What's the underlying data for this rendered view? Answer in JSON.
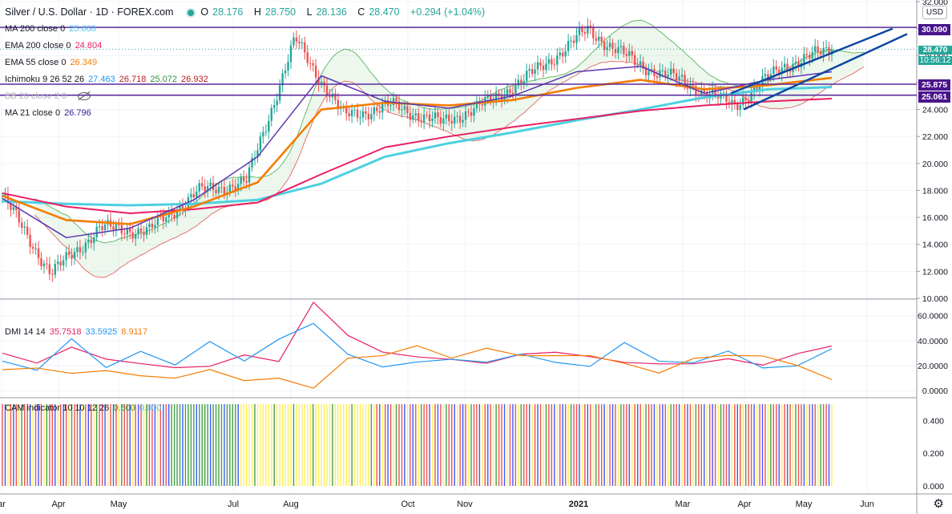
{
  "header": {
    "symbol": "Silver / U.S. Dollar · 1D · FOREX.com",
    "ohlc": {
      "o_label": "O",
      "o": "28.176",
      "h_label": "H",
      "h": "28.750",
      "l_label": "L",
      "l": "28.136",
      "c_label": "C",
      "c": "28.470",
      "change": "+0.294 (+1.04%)"
    },
    "currency": "USD"
  },
  "legend": [
    {
      "label": "MA 200 close 0",
      "value": "25.660",
      "color": "#4fc3f7"
    },
    {
      "label": "EMA 200 close 0",
      "value": "24.804",
      "color": "#e91e63"
    },
    {
      "label": "EMA 55 close 0",
      "value": "26.349",
      "color": "#f57c00"
    },
    {
      "label": "Ichimoku 9 26 52 26",
      "values": [
        "27.463",
        "26.718",
        "25.072",
        "26.932"
      ],
      "colors": [
        "#2196f3",
        "#b71c1c",
        "#388e3c",
        "#b71c1c"
      ]
    },
    {
      "label": "BB 20 close 2 0",
      "value": "",
      "color": "#90a4ae"
    },
    {
      "label": "MA 21 close 0",
      "value": "26.796",
      "color": "#311b92"
    }
  ],
  "dmi_legend": {
    "label": "DMI 14 14",
    "values": [
      "35.7518",
      "33.5925",
      "8.9117"
    ],
    "colors": [
      "#e91e63",
      "#2196f3",
      "#f57c00"
    ]
  },
  "cam_legend": {
    "label": "CAM indicator 10 10 12 26",
    "values": [
      "0.500",
      "0.000"
    ],
    "colors": [
      "#388e3c",
      "#4fc3f7"
    ]
  },
  "price_tags": {
    "resistance_top": "30.090",
    "last_price": "28.470",
    "countdown": "10:56:12",
    "level_mid": "25.875",
    "level_low": "25.061"
  },
  "colors": {
    "up": "#26a69a",
    "down": "#ef5350",
    "horizontal_line": "#5b2c9e",
    "channel": "#0d47a1",
    "last_price": "#26a69a",
    "cam_colors": [
      "#ef5350",
      "#3d5afe",
      "#ffee58",
      "#43a047"
    ]
  },
  "chart_data": [
    {
      "type": "candlestick",
      "title": "Silver / U.S. Dollar · 1D · FOREX.com",
      "x_ticks": [
        "ar",
        "Apr",
        "May",
        "Jul",
        "Aug",
        "Oct",
        "Nov",
        "2021",
        "Mar",
        "Apr",
        "May",
        "Jun"
      ],
      "y_ticks": [
        "32.000",
        "30.000",
        "28.000",
        "26.000",
        "24.000",
        "22.000",
        "20.000",
        "18.000",
        "16.000",
        "14.000",
        "12.000",
        "10.000"
      ],
      "ylim": [
        10,
        32
      ],
      "horizontal_levels": [
        30.09,
        25.875,
        25.061
      ],
      "last_price": 28.47,
      "key_points": [
        {
          "x": "Mar",
          "y": 17.6
        },
        {
          "x": "Mar",
          "y": 11.8
        },
        {
          "x": "Apr",
          "y": 15.2
        },
        {
          "x": "May",
          "y": 15.0
        },
        {
          "x": "Jun",
          "y": 17.9
        },
        {
          "x": "Jul",
          "y": 18.6
        },
        {
          "x": "Aug",
          "y": 29.2
        },
        {
          "x": "Sep",
          "y": 23.5
        },
        {
          "x": "Oct",
          "y": 24.3
        },
        {
          "x": "Nov",
          "y": 23.0
        },
        {
          "x": "Dec",
          "y": 24.6
        },
        {
          "x": "Jan",
          "y": 27.0
        },
        {
          "x": "Feb",
          "y": 29.9
        },
        {
          "x": "Feb",
          "y": 27.4
        },
        {
          "x": "Mar",
          "y": 26.0
        },
        {
          "x": "Apr",
          "y": 24.3
        },
        {
          "x": "May",
          "y": 27.2
        },
        {
          "x": "May",
          "y": 28.47
        }
      ],
      "series": [
        {
          "name": "MA 200",
          "values": [
            17.2,
            17.0,
            16.9,
            17.0,
            17.3,
            18.5,
            20.5,
            21.5,
            22.3,
            23.2,
            24.0,
            24.9,
            25.5,
            25.66
          ]
        },
        {
          "name": "EMA 200",
          "values": [
            17.8,
            16.8,
            16.3,
            16.6,
            17.1,
            19.2,
            21.2,
            22.0,
            22.7,
            23.3,
            23.9,
            24.3,
            24.6,
            24.804
          ]
        },
        {
          "name": "EMA 55",
          "values": [
            17.6,
            15.8,
            15.5,
            16.8,
            18.6,
            24.0,
            24.5,
            24.3,
            24.7,
            25.6,
            26.2,
            25.5,
            25.8,
            26.349
          ]
        },
        {
          "name": "MA 21",
          "values": [
            17.4,
            14.5,
            15.2,
            17.3,
            20.5,
            26.5,
            24.6,
            24.1,
            25.0,
            26.8,
            27.2,
            25.2,
            26.2,
            26.796
          ]
        }
      ]
    },
    {
      "type": "line",
      "title": "DMI 14 14",
      "y_ticks": [
        "60.0000",
        "40.0000",
        "20.0000",
        "0.0000"
      ],
      "ylim": [
        -5,
        72
      ],
      "series": [
        {
          "name": "",
          "values": [
            30,
            22,
            35,
            25,
            22,
            18,
            20,
            28,
            24,
            70,
            45,
            30,
            28,
            24,
            23,
            28,
            32,
            26,
            24,
            20,
            23,
            24,
            22,
            28,
            35.7518
          ]
        },
        {
          "name": "",
          "values": [
            22,
            18,
            40,
            20,
            30,
            22,
            38,
            25,
            40,
            55,
            28,
            20,
            22,
            26,
            22,
            30,
            22,
            20,
            38,
            24,
            22,
            32,
            18,
            20,
            33.5925
          ]
        },
        {
          "name": "",
          "values": [
            15,
            20,
            12,
            18,
            10,
            12,
            15,
            10,
            8,
            4,
            24,
            30,
            34,
            28,
            32,
            30,
            26,
            30,
            20,
            16,
            24,
            30,
            26,
            22,
            8.9117
          ]
        }
      ]
    },
    {
      "type": "bar",
      "title": "CAM indicator 10 10 12 26",
      "y_ticks": [
        "0.400",
        "0.200",
        "0.000"
      ],
      "ylim": [
        0,
        0.5
      ],
      "value": 0.5
    }
  ]
}
